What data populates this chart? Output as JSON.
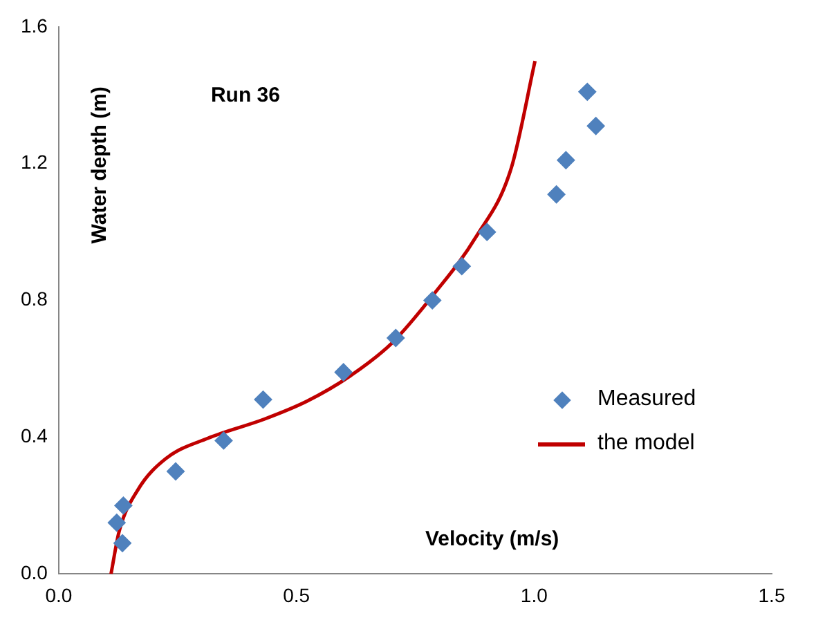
{
  "chart_data": {
    "type": "scatter",
    "xlabel": "Velocity (m/s)",
    "ylabel": "Water depth (m)",
    "annotations": [
      "Run 36"
    ],
    "xlim": [
      0,
      1.5
    ],
    "xticks": [
      {
        "value": 0,
        "label": "0.0"
      },
      {
        "value": 0.5,
        "label": "0.5"
      },
      {
        "value": 1,
        "label": "1.0"
      },
      {
        "value": 1.5,
        "label": "1.5"
      }
    ],
    "ylim": [
      0,
      1.6
    ],
    "yticks": [
      {
        "value": 0,
        "label": "0.0"
      },
      {
        "value": 0.4,
        "label": "0.4"
      },
      {
        "value": 0.8,
        "label": "0.8"
      },
      {
        "value": 1.2,
        "label": "1.2"
      },
      {
        "value": 1.6,
        "label": "1.6"
      }
    ],
    "legend": "right",
    "grid": false,
    "series": [
      {
        "name": "Measured",
        "type": "scatter",
        "marker": "diamond",
        "color": "#4f81bd",
        "x": [
          0.134,
          0.122,
          0.136,
          0.246,
          0.347,
          0.43,
          0.599,
          0.709,
          0.786,
          0.848,
          0.901,
          1.047,
          1.067,
          1.13,
          1.112
        ],
        "values": [
          0.09,
          0.15,
          0.2,
          0.3,
          0.39,
          0.51,
          0.59,
          0.69,
          0.8,
          0.9,
          1.0,
          1.11,
          1.21,
          1.31,
          1.41
        ]
      },
      {
        "name": "the model",
        "type": "line",
        "marker": "none",
        "line_style": "solid",
        "color": "#c00000",
        "x": [
          0.11,
          0.127,
          0.166,
          0.225,
          0.314,
          0.433,
          0.522,
          0.611,
          0.7,
          0.789,
          0.878,
          0.952,
          1.002
        ],
        "values": [
          0,
          0.124,
          0.245,
          0.337,
          0.397,
          0.453,
          0.505,
          0.577,
          0.674,
          0.818,
          0.986,
          1.187,
          1.5
        ]
      }
    ]
  }
}
